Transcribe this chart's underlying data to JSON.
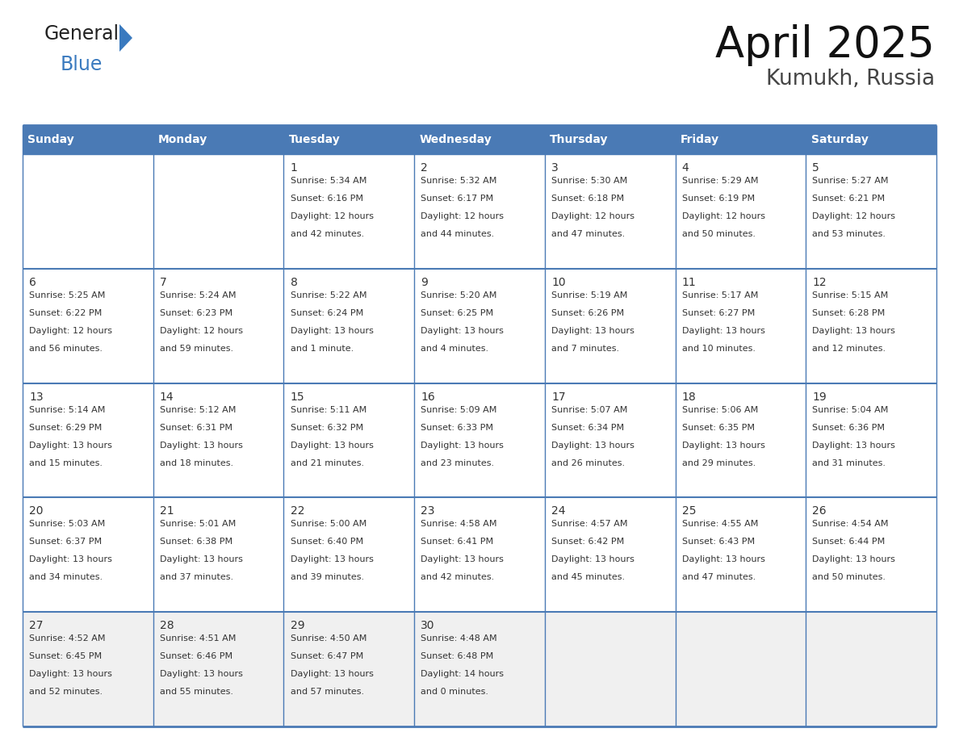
{
  "title": "April 2025",
  "subtitle": "Kumukh, Russia",
  "header_color": "#4a7ab5",
  "header_text_color": "#ffffff",
  "cell_bg_white": "#ffffff",
  "cell_bg_gray": "#f0f0f0",
  "border_color": "#4a7ab5",
  "text_color": "#333333",
  "logo_black": "#222222",
  "logo_blue": "#3a7abf",
  "triangle_color": "#3a7abf",
  "days_of_week": [
    "Sunday",
    "Monday",
    "Tuesday",
    "Wednesday",
    "Thursday",
    "Friday",
    "Saturday"
  ],
  "calendar_data": [
    [
      {
        "day": "",
        "sunrise": "",
        "sunset": "",
        "daylight1": "",
        "daylight2": ""
      },
      {
        "day": "",
        "sunrise": "",
        "sunset": "",
        "daylight1": "",
        "daylight2": ""
      },
      {
        "day": "1",
        "sunrise": "Sunrise: 5:34 AM",
        "sunset": "Sunset: 6:16 PM",
        "daylight1": "Daylight: 12 hours",
        "daylight2": "and 42 minutes."
      },
      {
        "day": "2",
        "sunrise": "Sunrise: 5:32 AM",
        "sunset": "Sunset: 6:17 PM",
        "daylight1": "Daylight: 12 hours",
        "daylight2": "and 44 minutes."
      },
      {
        "day": "3",
        "sunrise": "Sunrise: 5:30 AM",
        "sunset": "Sunset: 6:18 PM",
        "daylight1": "Daylight: 12 hours",
        "daylight2": "and 47 minutes."
      },
      {
        "day": "4",
        "sunrise": "Sunrise: 5:29 AM",
        "sunset": "Sunset: 6:19 PM",
        "daylight1": "Daylight: 12 hours",
        "daylight2": "and 50 minutes."
      },
      {
        "day": "5",
        "sunrise": "Sunrise: 5:27 AM",
        "sunset": "Sunset: 6:21 PM",
        "daylight1": "Daylight: 12 hours",
        "daylight2": "and 53 minutes."
      }
    ],
    [
      {
        "day": "6",
        "sunrise": "Sunrise: 5:25 AM",
        "sunset": "Sunset: 6:22 PM",
        "daylight1": "Daylight: 12 hours",
        "daylight2": "and 56 minutes."
      },
      {
        "day": "7",
        "sunrise": "Sunrise: 5:24 AM",
        "sunset": "Sunset: 6:23 PM",
        "daylight1": "Daylight: 12 hours",
        "daylight2": "and 59 minutes."
      },
      {
        "day": "8",
        "sunrise": "Sunrise: 5:22 AM",
        "sunset": "Sunset: 6:24 PM",
        "daylight1": "Daylight: 13 hours",
        "daylight2": "and 1 minute."
      },
      {
        "day": "9",
        "sunrise": "Sunrise: 5:20 AM",
        "sunset": "Sunset: 6:25 PM",
        "daylight1": "Daylight: 13 hours",
        "daylight2": "and 4 minutes."
      },
      {
        "day": "10",
        "sunrise": "Sunrise: 5:19 AM",
        "sunset": "Sunset: 6:26 PM",
        "daylight1": "Daylight: 13 hours",
        "daylight2": "and 7 minutes."
      },
      {
        "day": "11",
        "sunrise": "Sunrise: 5:17 AM",
        "sunset": "Sunset: 6:27 PM",
        "daylight1": "Daylight: 13 hours",
        "daylight2": "and 10 minutes."
      },
      {
        "day": "12",
        "sunrise": "Sunrise: 5:15 AM",
        "sunset": "Sunset: 6:28 PM",
        "daylight1": "Daylight: 13 hours",
        "daylight2": "and 12 minutes."
      }
    ],
    [
      {
        "day": "13",
        "sunrise": "Sunrise: 5:14 AM",
        "sunset": "Sunset: 6:29 PM",
        "daylight1": "Daylight: 13 hours",
        "daylight2": "and 15 minutes."
      },
      {
        "day": "14",
        "sunrise": "Sunrise: 5:12 AM",
        "sunset": "Sunset: 6:31 PM",
        "daylight1": "Daylight: 13 hours",
        "daylight2": "and 18 minutes."
      },
      {
        "day": "15",
        "sunrise": "Sunrise: 5:11 AM",
        "sunset": "Sunset: 6:32 PM",
        "daylight1": "Daylight: 13 hours",
        "daylight2": "and 21 minutes."
      },
      {
        "day": "16",
        "sunrise": "Sunrise: 5:09 AM",
        "sunset": "Sunset: 6:33 PM",
        "daylight1": "Daylight: 13 hours",
        "daylight2": "and 23 minutes."
      },
      {
        "day": "17",
        "sunrise": "Sunrise: 5:07 AM",
        "sunset": "Sunset: 6:34 PM",
        "daylight1": "Daylight: 13 hours",
        "daylight2": "and 26 minutes."
      },
      {
        "day": "18",
        "sunrise": "Sunrise: 5:06 AM",
        "sunset": "Sunset: 6:35 PM",
        "daylight1": "Daylight: 13 hours",
        "daylight2": "and 29 minutes."
      },
      {
        "day": "19",
        "sunrise": "Sunrise: 5:04 AM",
        "sunset": "Sunset: 6:36 PM",
        "daylight1": "Daylight: 13 hours",
        "daylight2": "and 31 minutes."
      }
    ],
    [
      {
        "day": "20",
        "sunrise": "Sunrise: 5:03 AM",
        "sunset": "Sunset: 6:37 PM",
        "daylight1": "Daylight: 13 hours",
        "daylight2": "and 34 minutes."
      },
      {
        "day": "21",
        "sunrise": "Sunrise: 5:01 AM",
        "sunset": "Sunset: 6:38 PM",
        "daylight1": "Daylight: 13 hours",
        "daylight2": "and 37 minutes."
      },
      {
        "day": "22",
        "sunrise": "Sunrise: 5:00 AM",
        "sunset": "Sunset: 6:40 PM",
        "daylight1": "Daylight: 13 hours",
        "daylight2": "and 39 minutes."
      },
      {
        "day": "23",
        "sunrise": "Sunrise: 4:58 AM",
        "sunset": "Sunset: 6:41 PM",
        "daylight1": "Daylight: 13 hours",
        "daylight2": "and 42 minutes."
      },
      {
        "day": "24",
        "sunrise": "Sunrise: 4:57 AM",
        "sunset": "Sunset: 6:42 PM",
        "daylight1": "Daylight: 13 hours",
        "daylight2": "and 45 minutes."
      },
      {
        "day": "25",
        "sunrise": "Sunrise: 4:55 AM",
        "sunset": "Sunset: 6:43 PM",
        "daylight1": "Daylight: 13 hours",
        "daylight2": "and 47 minutes."
      },
      {
        "day": "26",
        "sunrise": "Sunrise: 4:54 AM",
        "sunset": "Sunset: 6:44 PM",
        "daylight1": "Daylight: 13 hours",
        "daylight2": "and 50 minutes."
      }
    ],
    [
      {
        "day": "27",
        "sunrise": "Sunrise: 4:52 AM",
        "sunset": "Sunset: 6:45 PM",
        "daylight1": "Daylight: 13 hours",
        "daylight2": "and 52 minutes."
      },
      {
        "day": "28",
        "sunrise": "Sunrise: 4:51 AM",
        "sunset": "Sunset: 6:46 PM",
        "daylight1": "Daylight: 13 hours",
        "daylight2": "and 55 minutes."
      },
      {
        "day": "29",
        "sunrise": "Sunrise: 4:50 AM",
        "sunset": "Sunset: 6:47 PM",
        "daylight1": "Daylight: 13 hours",
        "daylight2": "and 57 minutes."
      },
      {
        "day": "30",
        "sunrise": "Sunrise: 4:48 AM",
        "sunset": "Sunset: 6:48 PM",
        "daylight1": "Daylight: 14 hours",
        "daylight2": "and 0 minutes."
      },
      {
        "day": "",
        "sunrise": "",
        "sunset": "",
        "daylight1": "",
        "daylight2": ""
      },
      {
        "day": "",
        "sunrise": "",
        "sunset": "",
        "daylight1": "",
        "daylight2": ""
      },
      {
        "day": "",
        "sunrise": "",
        "sunset": "",
        "daylight1": "",
        "daylight2": ""
      }
    ]
  ]
}
